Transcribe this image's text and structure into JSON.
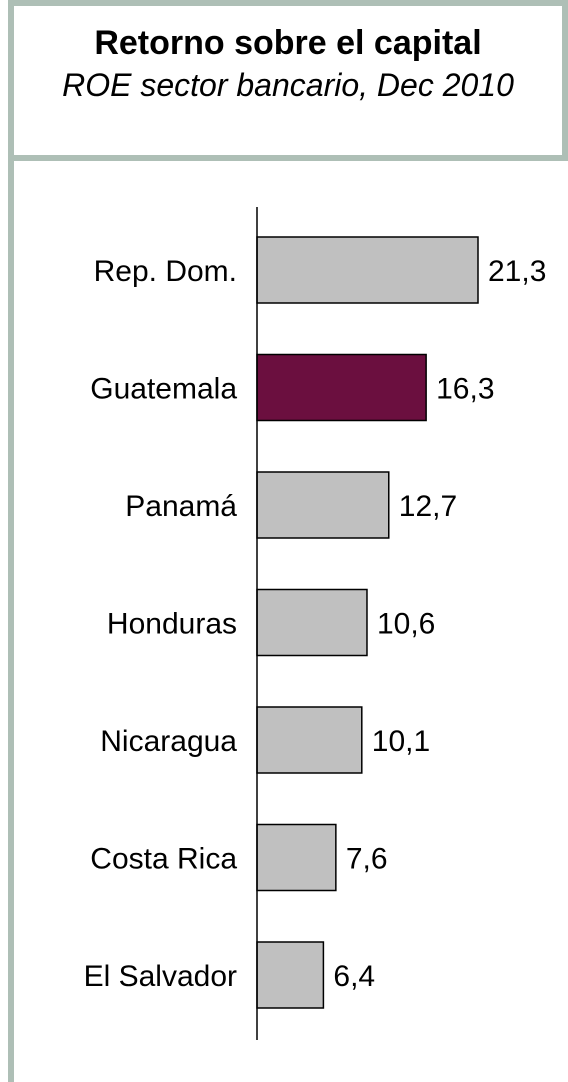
{
  "header": {
    "title": "Retorno sobre el capital",
    "subtitle": "ROE sector bancario, Dec 2010"
  },
  "chart_data": {
    "type": "bar",
    "orientation": "horizontal",
    "categories": [
      "Rep. Dom.",
      "Guatemala",
      "Panamá",
      "Honduras",
      "Nicaragua",
      "Costa Rica",
      "El Salvador"
    ],
    "values": [
      21.3,
      16.3,
      12.7,
      10.6,
      10.1,
      7.6,
      6.4
    ],
    "value_labels": [
      "21,3",
      "16,3",
      "12,7",
      "10,6",
      "10,1",
      "7,6",
      "6,4"
    ],
    "highlight_category": "Guatemala",
    "colors": {
      "default_bar": "#c0c0c0",
      "highlight_bar": "#6b0f3f",
      "bar_outline": "#000000",
      "frame": "#aebfb6"
    },
    "xlim": [
      0,
      21.3
    ],
    "grid": false,
    "legend": "none"
  }
}
